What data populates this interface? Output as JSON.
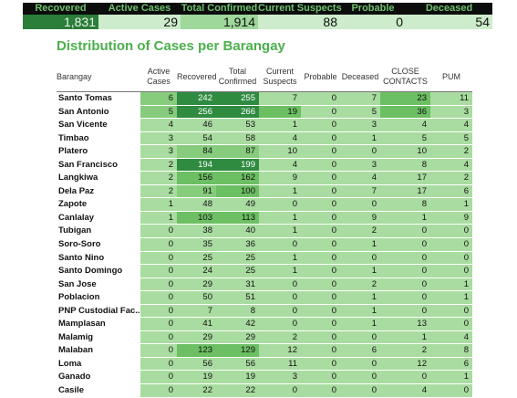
{
  "summary": {
    "labels": [
      "Recovered",
      "Active Cases",
      "Total Confirmed",
      "Current Suspects",
      "Probable",
      "Deceased"
    ],
    "values": [
      "1,831",
      "29",
      "1,914",
      "88",
      "0",
      "54"
    ]
  },
  "title": "Distribution of Cases per Barangay",
  "columns": [
    "Barangay",
    "Active Cases",
    "Recovered",
    "Total Confirmed",
    "Current Suspects",
    "Probable",
    "Deceased",
    "CLOSE CONTACTS",
    "PUM"
  ],
  "rows": [
    [
      "Santo Tomas",
      "6",
      "242",
      "255",
      "7",
      "0",
      "7",
      "23",
      "11"
    ],
    [
      "San Antonio",
      "5",
      "256",
      "266",
      "19",
      "0",
      "5",
      "36",
      "3"
    ],
    [
      "San Vicente",
      "4",
      "46",
      "53",
      "1",
      "0",
      "3",
      "4",
      "4"
    ],
    [
      "Timbao",
      "3",
      "54",
      "58",
      "4",
      "0",
      "1",
      "5",
      "5"
    ],
    [
      "Platero",
      "3",
      "84",
      "87",
      "10",
      "0",
      "0",
      "10",
      "2"
    ],
    [
      "San Francisco",
      "2",
      "194",
      "199",
      "4",
      "0",
      "3",
      "8",
      "4"
    ],
    [
      "Langkiwa",
      "2",
      "156",
      "162",
      "9",
      "0",
      "4",
      "17",
      "2"
    ],
    [
      "Dela Paz",
      "2",
      "91",
      "100",
      "1",
      "0",
      "7",
      "17",
      "6"
    ],
    [
      "Zapote",
      "1",
      "48",
      "49",
      "0",
      "0",
      "0",
      "8",
      "1"
    ],
    [
      "Canlalay",
      "1",
      "103",
      "113",
      "1",
      "0",
      "9",
      "1",
      "9"
    ],
    [
      "Tubigan",
      "0",
      "38",
      "40",
      "1",
      "0",
      "2",
      "0",
      "0"
    ],
    [
      "Soro-Soro",
      "0",
      "35",
      "36",
      "0",
      "0",
      "1",
      "0",
      "0"
    ],
    [
      "Santo Nino",
      "0",
      "25",
      "25",
      "1",
      "0",
      "0",
      "0",
      "0"
    ],
    [
      "Santo Domingo",
      "0",
      "24",
      "25",
      "1",
      "0",
      "1",
      "0",
      "0"
    ],
    [
      "San Jose",
      "0",
      "29",
      "31",
      "0",
      "0",
      "2",
      "0",
      "1"
    ],
    [
      "Poblacion",
      "0",
      "50",
      "51",
      "0",
      "0",
      "1",
      "0",
      "1"
    ],
    [
      "PNP Custodial Fac..",
      "0",
      "7",
      "8",
      "0",
      "0",
      "1",
      "0",
      "0"
    ],
    [
      "Mamplasan",
      "0",
      "41",
      "42",
      "0",
      "0",
      "1",
      "13",
      "0"
    ],
    [
      "Malamig",
      "0",
      "29",
      "29",
      "2",
      "0",
      "0",
      "1",
      "4"
    ],
    [
      "Malaban",
      "0",
      "123",
      "129",
      "12",
      "0",
      "6",
      "2",
      "8"
    ],
    [
      "Loma",
      "0",
      "56",
      "56",
      "11",
      "0",
      "0",
      "12",
      "6"
    ],
    [
      "Ganado",
      "0",
      "19",
      "19",
      "3",
      "0",
      "0",
      "0",
      "1"
    ],
    [
      "Casile",
      "0",
      "22",
      "22",
      "0",
      "0",
      "0",
      "4",
      "0"
    ]
  ],
  "colors": {
    "header_text": "#6ec26e",
    "title": "#4bb04b",
    "cell_green": "#a9dca0",
    "cell_dark": "#2f8b40"
  }
}
